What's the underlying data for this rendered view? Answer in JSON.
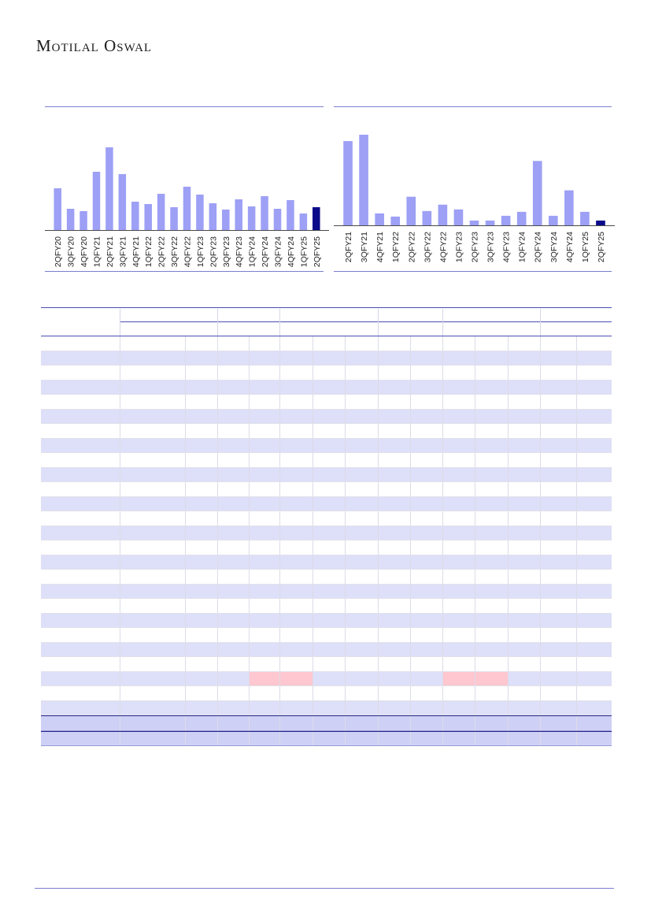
{
  "header": {
    "brand": "Motilal Oswal"
  },
  "colors": {
    "bar": "#9da0f5",
    "bar_highlight": "#0a0a8a",
    "rule": "#7b7fd0",
    "row_alt": "#dedff8",
    "highlight_cell": "#ffc7cf"
  },
  "chart_data": [
    {
      "type": "bar",
      "categories": [
        "2QFY20",
        "3QFY20",
        "4QFY20",
        "1QFY21",
        "2QFY21",
        "3QFY21",
        "4QFY21",
        "1QFY22",
        "2QFY22",
        "3QFY22",
        "4QFY22",
        "1QFY23",
        "2QFY23",
        "3QFY23",
        "4QFY23",
        "1QFY24",
        "2QFY24",
        "3QFY24",
        "4QFY24",
        "1QFY25",
        "2QFY25"
      ],
      "values": [
        53,
        27,
        24,
        74,
        105,
        71,
        36,
        33,
        46,
        29,
        55,
        45,
        34,
        26,
        39,
        30,
        43,
        27,
        38,
        21,
        29
      ],
      "highlight_last": true,
      "title": "",
      "xlabel": "",
      "ylabel": ""
    },
    {
      "type": "bar",
      "categories": [
        "2QFY21",
        "3QFY21",
        "4QFY21",
        "1QFY22",
        "2QFY22",
        "3QFY22",
        "4QFY22",
        "1QFY23",
        "2QFY23",
        "3QFY23",
        "4QFY23",
        "1QFY24",
        "2QFY24",
        "3QFY24",
        "4QFY24",
        "1QFY25",
        "2QFY25"
      ],
      "values": [
        106,
        114,
        15,
        11,
        36,
        18,
        26,
        20,
        6,
        6,
        12,
        17,
        81,
        12,
        44,
        17,
        6
      ],
      "highlight_last": true,
      "title": "",
      "xlabel": "",
      "ylabel": ""
    }
  ],
  "table": {
    "rows": 28,
    "highlighted_cells": [
      {
        "row": 23,
        "col_start": 4,
        "col_end": 6
      },
      {
        "row": 23,
        "col_start": 10,
        "col_end": 12
      }
    ]
  }
}
